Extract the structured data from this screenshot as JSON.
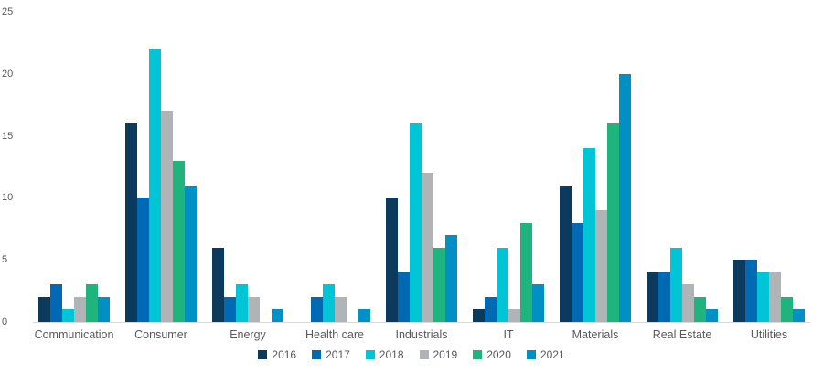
{
  "chart_data": {
    "type": "bar",
    "title": "",
    "xlabel": "",
    "ylabel": "",
    "categories": [
      "Communication",
      "Consumer",
      "Energy",
      "Health care",
      "Industrials",
      "IT",
      "Materials",
      "Real Estate",
      "Utilities"
    ],
    "series": [
      {
        "name": "2016",
        "color": "#0b3a5d",
        "values": [
          2,
          16,
          6,
          0,
          10,
          1,
          11,
          4,
          5
        ]
      },
      {
        "name": "2017",
        "color": "#0069b4",
        "values": [
          3,
          10,
          2,
          2,
          4,
          2,
          8,
          4,
          5
        ]
      },
      {
        "name": "2018",
        "color": "#00c5d6",
        "values": [
          1,
          22,
          3,
          3,
          16,
          6,
          14,
          6,
          4
        ]
      },
      {
        "name": "2019",
        "color": "#b1b4b6",
        "values": [
          2,
          17,
          2,
          2,
          12,
          1,
          9,
          3,
          4
        ]
      },
      {
        "name": "2020",
        "color": "#1fb47e",
        "values": [
          3,
          13,
          0,
          0,
          6,
          8,
          16,
          2,
          2
        ]
      },
      {
        "name": "2021",
        "color": "#0090c3",
        "values": [
          2,
          11,
          1,
          1,
          7,
          3,
          20,
          1,
          1
        ]
      }
    ],
    "ylim": [
      0,
      25
    ],
    "yticks": [
      0,
      5,
      10,
      15,
      20,
      25
    ],
    "grid": false,
    "legend_position": "bottom",
    "legend_labels": [
      "2016",
      "2017",
      "2018",
      "2019",
      "2020",
      "2021"
    ],
    "axis_line_color": "#d9d9d9",
    "tick_label_color": "#595959",
    "background_color": "#ffffff"
  }
}
